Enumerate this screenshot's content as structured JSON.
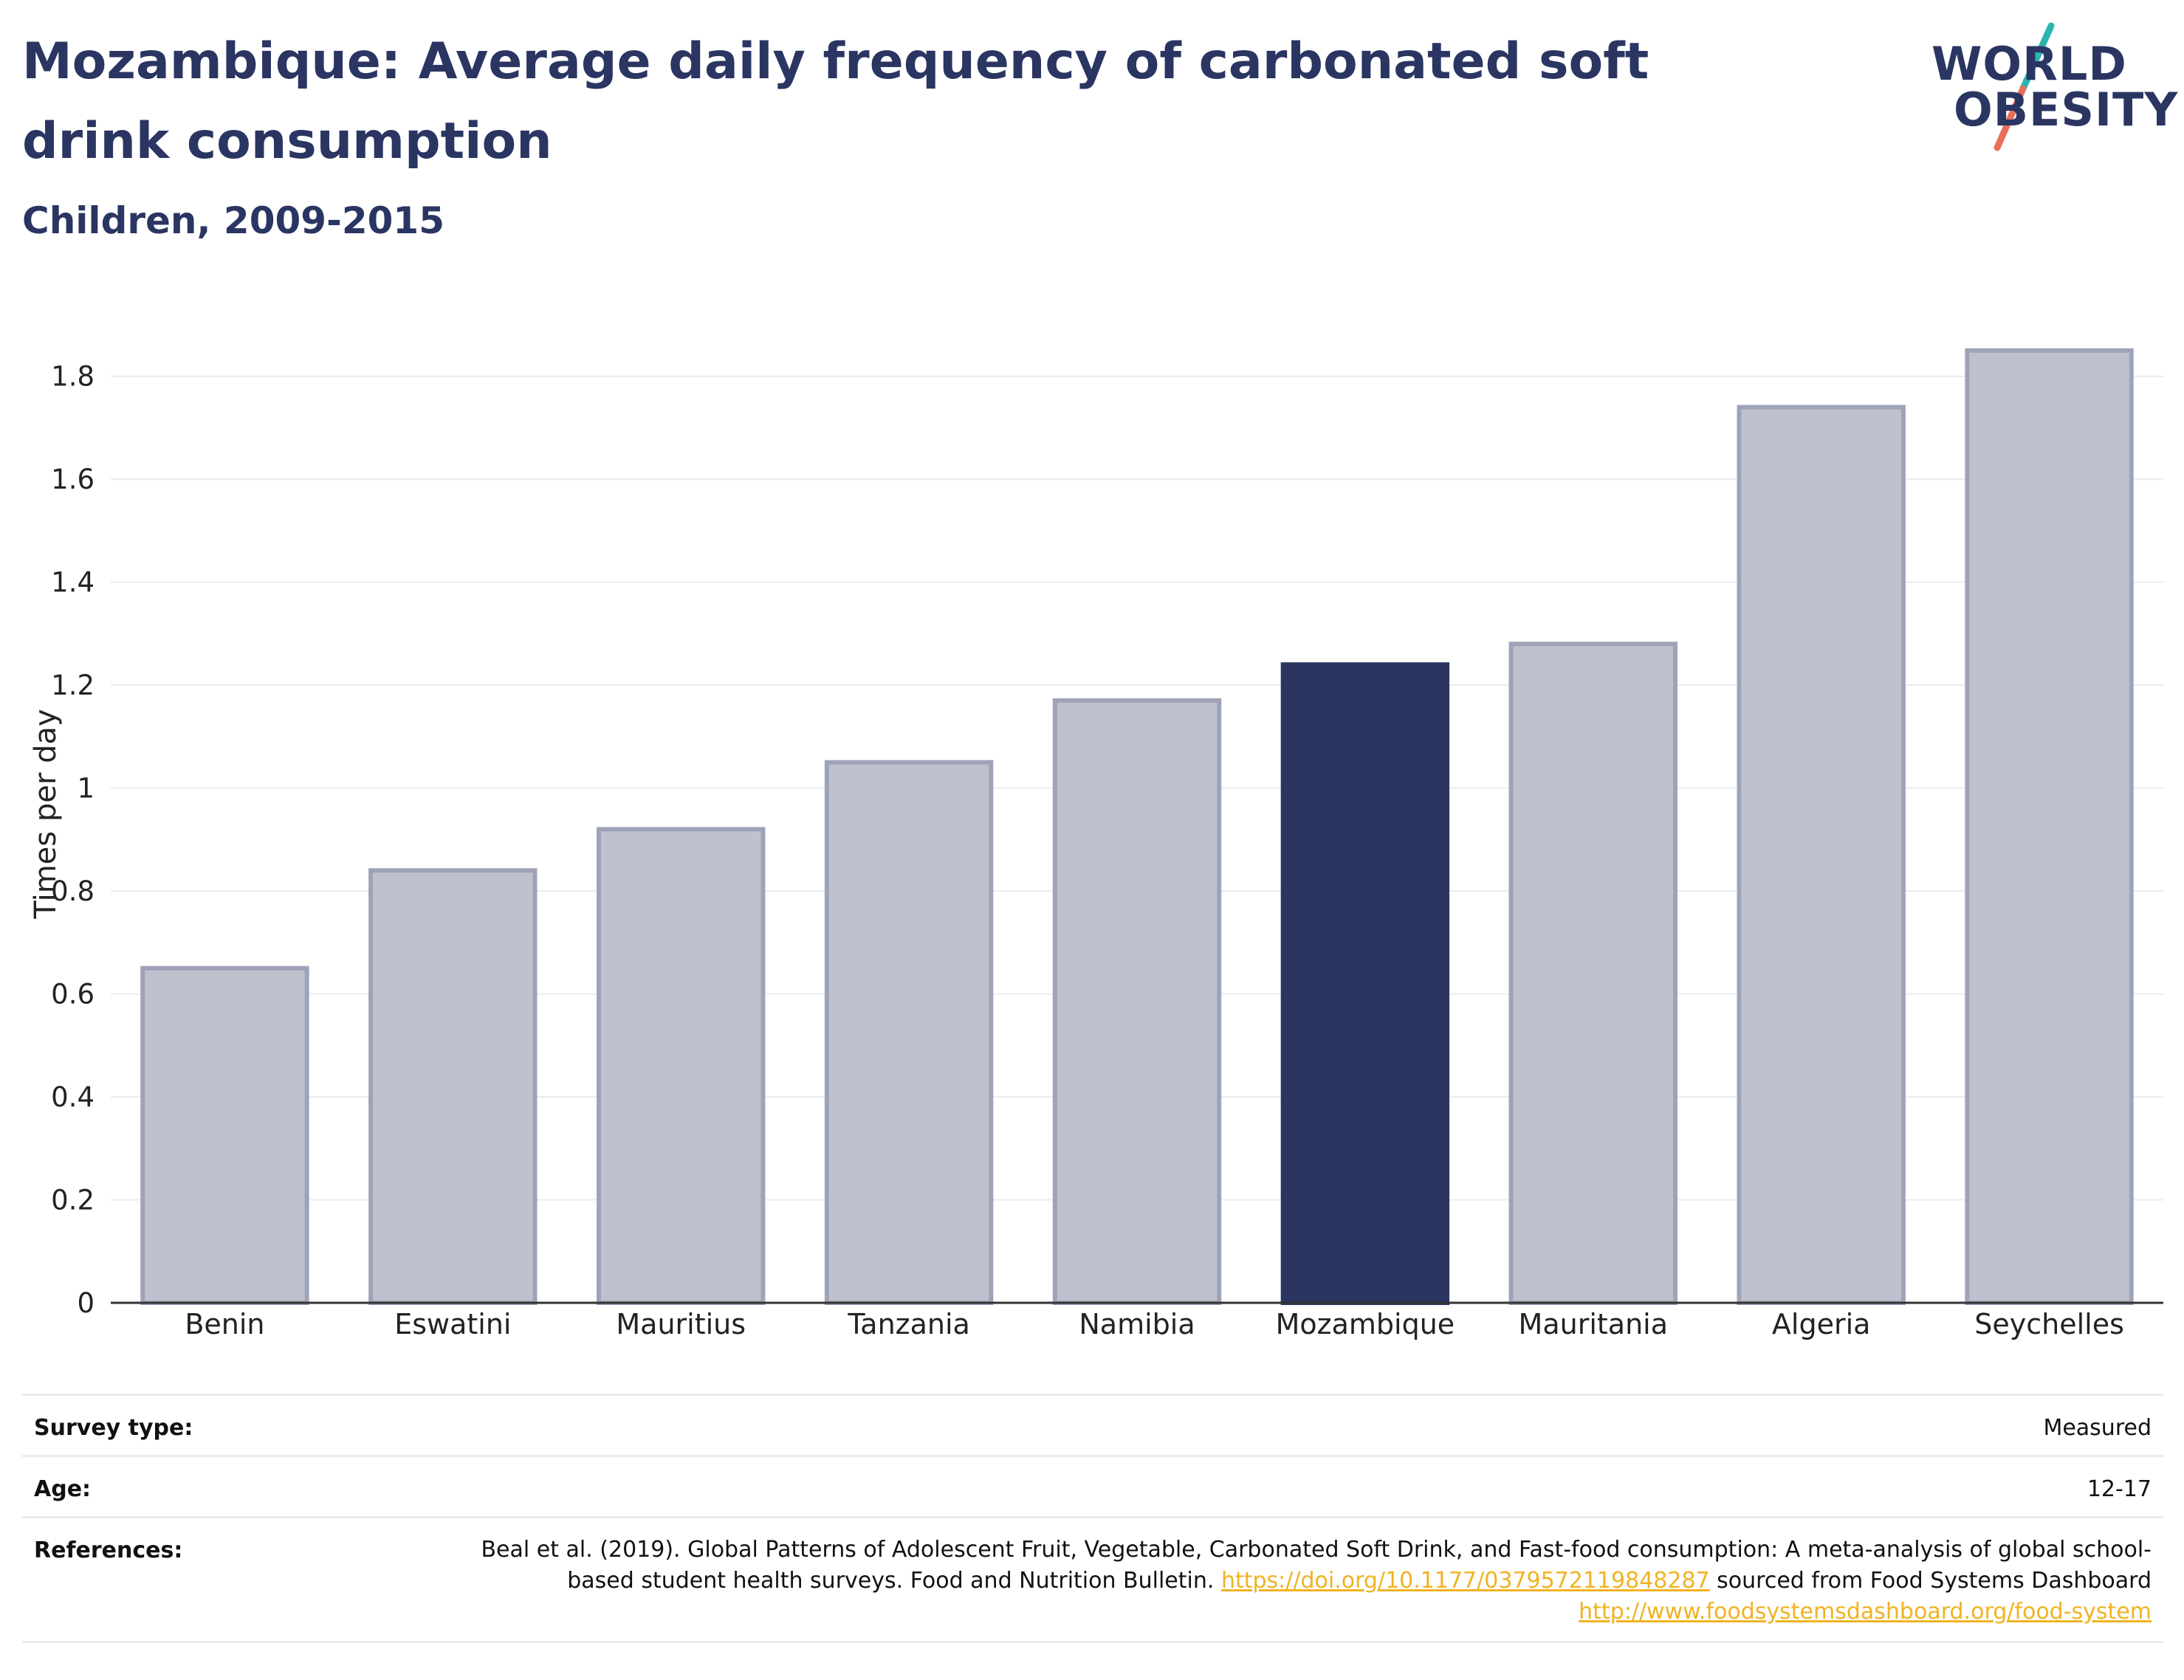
{
  "header": {
    "title": "Mozambique: Average daily frequency of carbonated soft drink consumption",
    "subtitle": "Children, 2009-2015"
  },
  "logo": {
    "line1": "WORLD",
    "line2": "OBESITY",
    "accent_colors": [
      "#2bb5b0",
      "#e8705a"
    ]
  },
  "chart_data": {
    "type": "bar",
    "categories": [
      "Benin",
      "Eswatini",
      "Mauritius",
      "Tanzania",
      "Namibia",
      "Mozambique",
      "Mauritania",
      "Algeria",
      "Seychelles"
    ],
    "values": [
      0.65,
      0.84,
      0.92,
      1.05,
      1.17,
      1.24,
      1.28,
      1.74,
      1.85
    ],
    "highlight": "Mozambique",
    "ylabel": "Times per day",
    "ylim": [
      0,
      1.9
    ],
    "yticks": [
      "0",
      "0.2",
      "0.4",
      "0.6",
      "0.8",
      "1",
      "1.2",
      "1.4",
      "1.6",
      "1.8"
    ],
    "grid": true,
    "colors": {
      "highlight": "#2a3562",
      "other": "#bfc2ce",
      "other_border": "#9ea3b8"
    }
  },
  "meta": {
    "survey_label": "Survey type:",
    "survey_value": "Measured",
    "age_label": "Age:",
    "age_value": "12-17",
    "ref_label": "References:",
    "ref_text_1": "Beal et al. (2019). Global Patterns of Adolescent Fruit, Vegetable, Carbonated Soft Drink, and Fast-food consumption: A meta-analysis of global school-based student health surveys. Food and Nutrition Bulletin.",
    "ref_link_1": "https://doi.org/10.1177/0379572119848287",
    "ref_text_2": "sourced from Food Systems Dashboard",
    "ref_link_2": "http://www.foodsystemsdashboard.org/food-system"
  }
}
